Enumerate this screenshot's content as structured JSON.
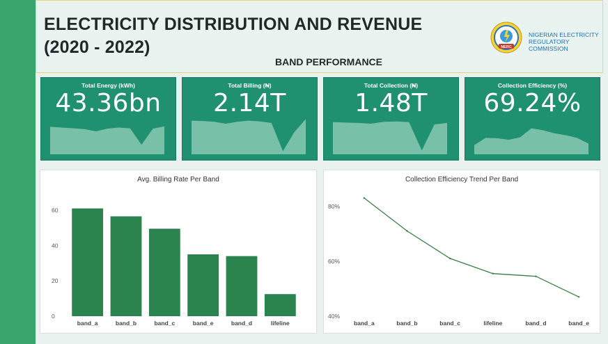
{
  "header": {
    "title_line1": "ELECTRICITY DISTRIBUTION AND REVENUE",
    "title_line2": "(2020 - 2022)",
    "subtitle": "BAND PERFORMANCE",
    "logo_text_line1": "NIGERIAN ELECTRICITY",
    "logo_text_line2": "REGULATORY COMMISSION",
    "logo_badge": "NERC"
  },
  "kpis": [
    {
      "label": "Total Energy (kWh)",
      "value": "43.36bn",
      "spark": [
        0.72,
        0.7,
        0.68,
        0.66,
        0.6,
        0.67,
        0.7,
        0.68,
        0.25,
        0.67,
        0.73
      ]
    },
    {
      "label": "Total Billing (₦)",
      "value": "2.14T",
      "spark": [
        0.88,
        0.87,
        0.85,
        0.8,
        0.85,
        0.88,
        0.86,
        0.82,
        0.08,
        0.58,
        0.92
      ]
    },
    {
      "label": "Total Collection (₦)",
      "value": "1.48T",
      "spark": [
        0.84,
        0.83,
        0.82,
        0.8,
        0.85,
        0.86,
        0.84,
        0.1,
        0.78,
        0.82
      ]
    },
    {
      "label": "Collection Efficiency (%)",
      "value": "69.24%",
      "spark": [
        0.24,
        0.43,
        0.42,
        0.38,
        0.44,
        0.68,
        0.63,
        0.55,
        0.5,
        0.43,
        0.28
      ]
    }
  ],
  "colors": {
    "accent": "#3aa56b",
    "kpi_bg": "#1f9070",
    "bar": "#2b844e",
    "line": "#3b7a43"
  },
  "chart_data": [
    {
      "type": "bar",
      "title": "Avg. Billing Rate Per Band",
      "categories": [
        "band_a",
        "band_b",
        "band_c",
        "band_e",
        "band_d",
        "lifeline"
      ],
      "values": [
        61,
        56.5,
        49.5,
        35,
        34,
        12.5
      ],
      "yticks": [
        0,
        20,
        40,
        60
      ],
      "ylim": [
        0,
        70
      ],
      "xlabel": "",
      "ylabel": "",
      "grid": false
    },
    {
      "type": "line",
      "title": "Collection Efficiency Trend Per Band",
      "categories": [
        "band_a",
        "band_b",
        "band_c",
        "lifeline",
        "band_d",
        "band_e"
      ],
      "values": [
        83,
        71,
        61,
        55.5,
        54.5,
        47
      ],
      "yticks": [
        "40%",
        "60%",
        "80%"
      ],
      "ylim": [
        40,
        85
      ],
      "xlabel": "",
      "ylabel": "",
      "grid": false
    }
  ]
}
